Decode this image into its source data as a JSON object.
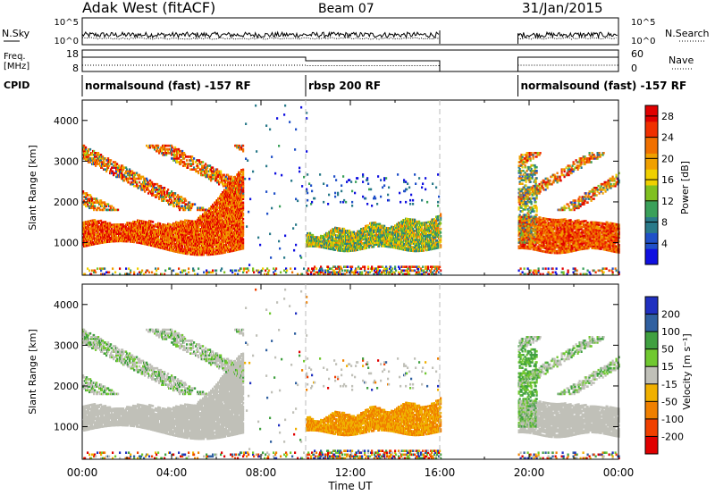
{
  "header": {
    "station": "Adak West (fitACF)",
    "beam": "Beam 07",
    "date": "31/Jan/2015"
  },
  "noise_panel": {
    "left_label": "N.Sky",
    "right_label": "N.Search",
    "left_ticks": [
      "10^5",
      "10^0"
    ],
    "right_ticks": [
      "10^5",
      "10^0"
    ]
  },
  "freq_panel": {
    "left_label_1": "Freq.",
    "left_label_2": "[MHz]",
    "right_label": "Nave",
    "left_ticks": [
      "18",
      "8"
    ],
    "right_ticks": [
      "60",
      "0"
    ]
  },
  "cpid": {
    "label": "CPID",
    "segments": [
      {
        "name": "normalsound (fast) -157 RF",
        "start_hour": 0
      },
      {
        "name": "rbsp 200 RF",
        "start_hour": 10
      },
      {
        "name": "normalsound (fast) -157 RF",
        "start_hour": 19.5
      }
    ]
  },
  "chart_data": [
    {
      "type": "heatmap",
      "title": "",
      "xlabel": "Time UT",
      "ylabel": "Slant Range [km]",
      "xlim": [
        0,
        24
      ],
      "ylim": [
        200,
        4500
      ],
      "x_ticks": [
        "00:00",
        "04:00",
        "08:00",
        "12:00",
        "16:00",
        "20:00",
        "00:00"
      ],
      "x_tick_hours": [
        0,
        4,
        8,
        12,
        16,
        20,
        24
      ],
      "y_ticks": [
        1000,
        2000,
        3000,
        4000
      ],
      "data_gaps_hours": [
        [
          16,
          19.5
        ]
      ],
      "colorbar": {
        "label": "Power [dB]",
        "ticks": [
          4,
          8,
          12,
          16,
          20,
          24,
          28
        ],
        "range": [
          0,
          30
        ],
        "colors": [
          "#1010e0",
          "#2050c8",
          "#2a7a8a",
          "#3aa05a",
          "#80c020",
          "#f0d000",
          "#f0a000",
          "#f07000",
          "#f03000",
          "#e00000"
        ]
      }
    },
    {
      "type": "heatmap",
      "title": "",
      "xlabel": "Time UT",
      "ylabel": "Slant Range [km]",
      "xlim": [
        0,
        24
      ],
      "ylim": [
        200,
        4500
      ],
      "x_ticks": [
        "00:00",
        "04:00",
        "08:00",
        "12:00",
        "16:00",
        "20:00",
        "00:00"
      ],
      "x_tick_hours": [
        0,
        4,
        8,
        12,
        16,
        20,
        24
      ],
      "y_ticks": [
        1000,
        2000,
        3000,
        4000
      ],
      "data_gaps_hours": [
        [
          16,
          19.5
        ]
      ],
      "colorbar": {
        "label": "Velocity [m s⁻¹]",
        "ticks": [
          200,
          100,
          50,
          15,
          -15,
          -50,
          -100,
          -200
        ],
        "colors": [
          "#2030c0",
          "#3060a0",
          "#40a040",
          "#70c830",
          "#c0c0b8",
          "#f0b000",
          "#f08000",
          "#f04000",
          "#e00000"
        ]
      }
    }
  ],
  "colors": {
    "dashed_lines": "#bbbbbb",
    "ground_scatter": "#c0c0b8"
  }
}
